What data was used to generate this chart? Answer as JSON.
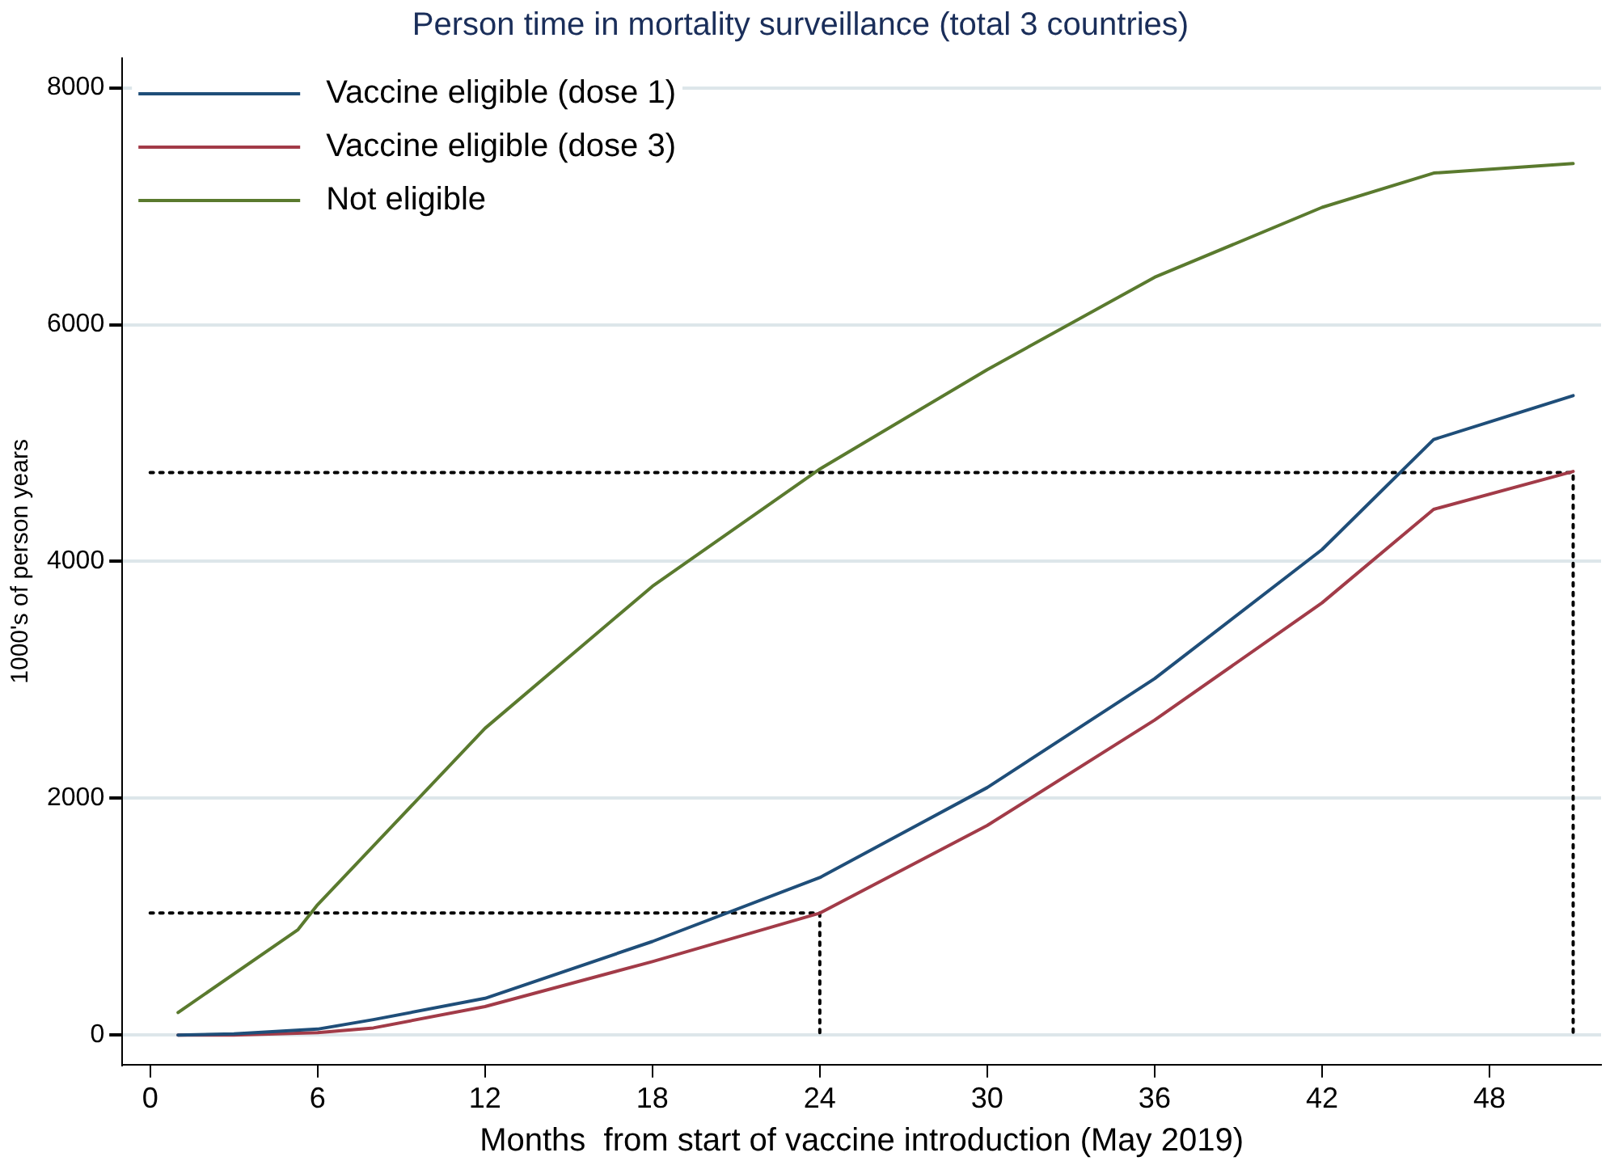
{
  "chart_data": {
    "type": "line",
    "title": "Person time in mortality surveillance (total 3 countries)",
    "xlabel": "Months  from start of vaccine introduction (May 2019)",
    "ylabel": "1000's of person years",
    "xlim": [
      -1,
      52
    ],
    "xticks": [
      0,
      6,
      12,
      18,
      24,
      30,
      36,
      42,
      48
    ],
    "ylim": [
      -250,
      8250
    ],
    "yticks": [
      0,
      2000,
      4000,
      6000,
      8000
    ],
    "grid": "y",
    "legend": "top left",
    "marker": "none",
    "line_style": "solid",
    "series": [
      {
        "name": "Vaccine eligible (dose 1)",
        "color": "#1f4e79",
        "x": [
          1,
          3,
          6,
          8,
          12,
          18,
          24,
          30,
          36,
          42,
          46,
          51
        ],
        "values": [
          0,
          10,
          50,
          130,
          310,
          790,
          1330,
          2090,
          3010,
          4100,
          5030,
          5400
        ]
      },
      {
        "name": "Vaccine eligible (dose 3)",
        "color": "#a23b48",
        "x": [
          1,
          3,
          6,
          8,
          12,
          18,
          24,
          30,
          36,
          42,
          46,
          51
        ],
        "values": [
          0,
          0,
          20,
          60,
          240,
          620,
          1030,
          1770,
          2660,
          3650,
          4440,
          4760
        ]
      },
      {
        "name": "Not eligible",
        "color": "#5a7a2e",
        "x": [
          1,
          5.3,
          6,
          12,
          18,
          24,
          30,
          36,
          42,
          46,
          51
        ],
        "values": [
          190,
          890,
          1100,
          2590,
          3790,
          4780,
          5620,
          6400,
          6990,
          7280,
          7360
        ]
      },
      {
        "color": "#000000",
        "line_style": "dotted",
        "x": [
          0,
          24,
          24
        ],
        "values": [
          1030,
          1030,
          0
        ]
      },
      {
        "color": "#000000",
        "line_style": "dotted",
        "x": [
          0,
          51,
          51
        ],
        "values": [
          4750,
          4750,
          0
        ]
      }
    ]
  }
}
